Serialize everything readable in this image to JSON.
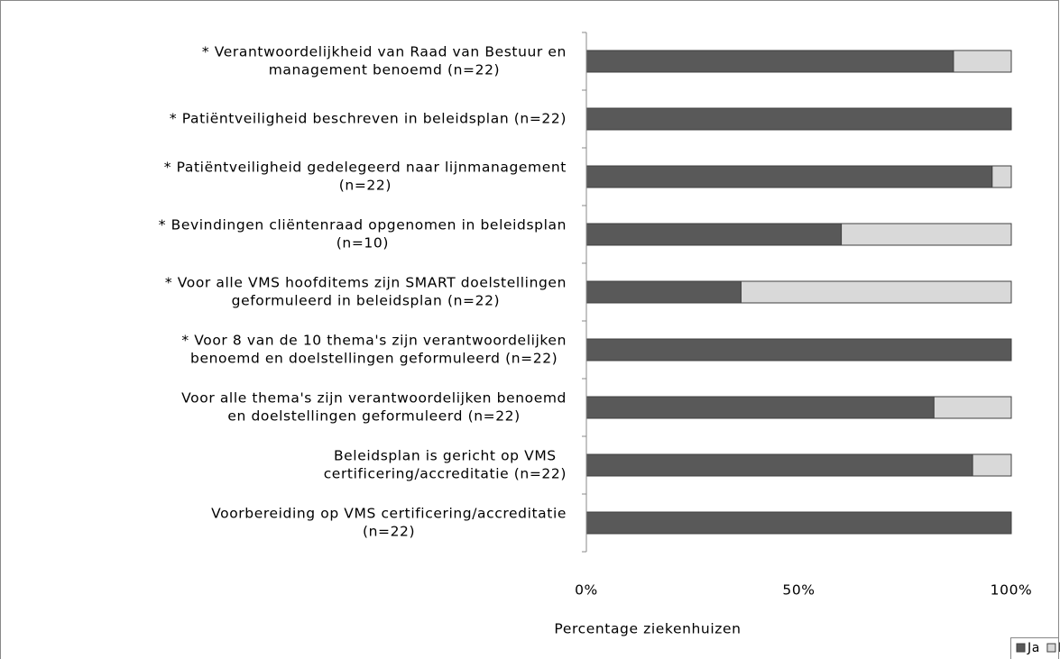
{
  "chart_data": {
    "type": "stacked_barh",
    "categories": [
      [
        "* Verantwoordelijkheid van Raad van Bestuur en",
        "management benoemd (n=22)"
      ],
      [
        "* Patiëntveiligheid beschreven in beleidsplan (n=22)"
      ],
      [
        "* Patiëntveiligheid gedelegeerd naar lijnmanagement",
        "(n=22)"
      ],
      [
        "* Bevindingen cliëntenraad opgenomen in beleidsplan",
        "(n=10)"
      ],
      [
        "* Voor alle VMS hoofditems zijn SMART doelstellingen",
        "geformuleerd in beleidsplan (n=22)"
      ],
      [
        "* Voor 8 van de 10 thema's zijn verantwoordelijken",
        "benoemd en doelstellingen geformuleerd (n=22)"
      ],
      [
        "Voor alle thema's zijn verantwoordelijken benoemd",
        "en doelstellingen geformuleerd (n=22)"
      ],
      [
        "Beleidsplan is gericht op VMS",
        "certificering/accreditatie (n=22)"
      ],
      [
        "Voorbereiding op VMS certificering/accreditatie",
        "(n=22)"
      ]
    ],
    "series": [
      {
        "name": "Ja",
        "color": "#595959",
        "values": [
          86.4,
          100,
          95.5,
          60,
          36.4,
          100,
          81.8,
          90.9,
          100
        ]
      },
      {
        "name": "Nee",
        "color": "#d9d9d9",
        "values": [
          13.6,
          0,
          4.5,
          40,
          63.6,
          0,
          18.2,
          9.1,
          0
        ]
      }
    ],
    "xlim": [
      0,
      100
    ],
    "xticks": [
      {
        "value": 0,
        "label": "0%"
      },
      {
        "value": 50,
        "label": "50%"
      },
      {
        "value": 100,
        "label": "100%"
      }
    ],
    "xlabel": "Percentage ziekenhuizen",
    "legend": "bottom-right"
  }
}
